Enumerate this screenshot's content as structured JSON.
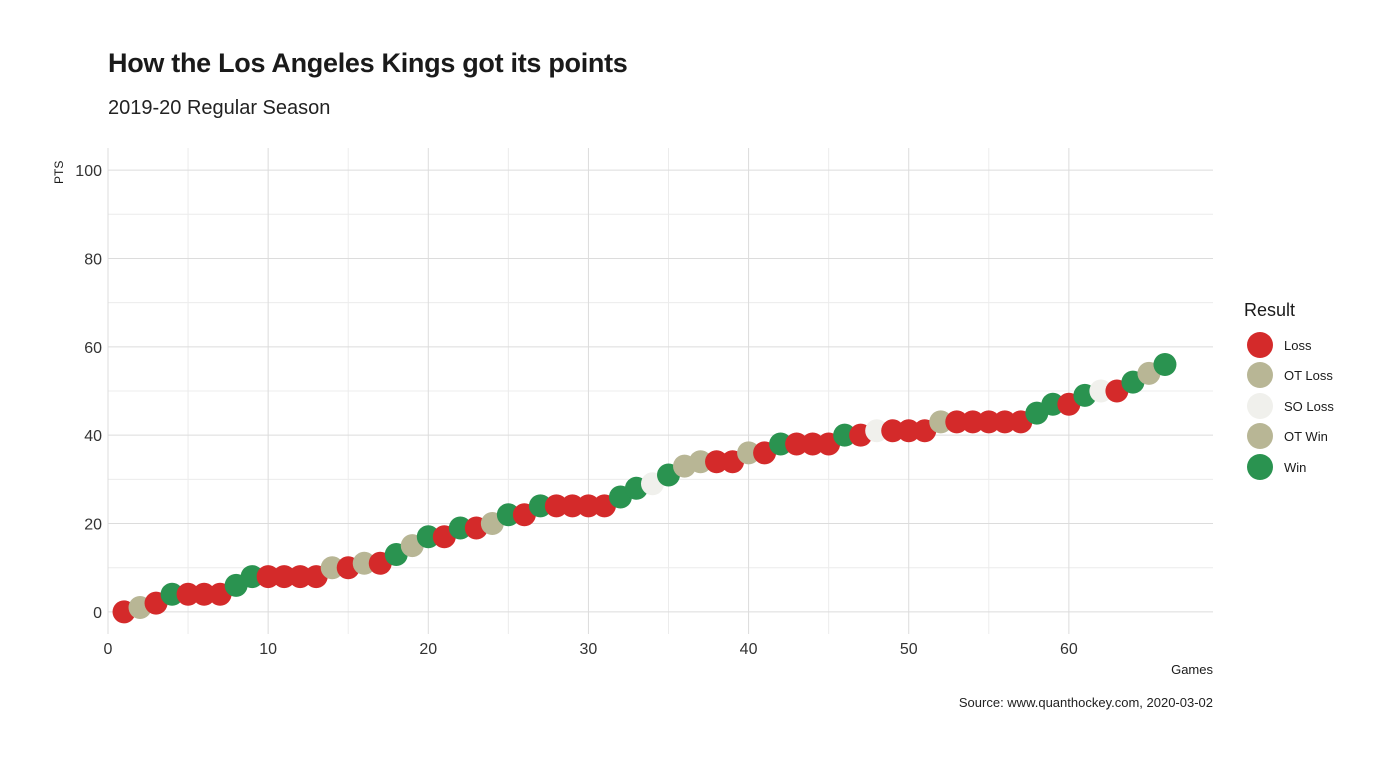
{
  "header": {
    "title": "How the Los Angeles Kings got its points",
    "subtitle": "2019-20 Regular Season"
  },
  "caption": "Source: www.quanthockey.com, 2020-03-02",
  "legend": {
    "title": "Result",
    "items": [
      {
        "label": "Loss",
        "color": "#d42a2a"
      },
      {
        "label": "OT Loss",
        "color": "#b8b695"
      },
      {
        "label": "SO Loss",
        "color": "#f0f0ec"
      },
      {
        "label": "OT Win",
        "color": "#b8b695"
      },
      {
        "label": "Win",
        "color": "#2a9350"
      }
    ]
  },
  "chart_data": {
    "type": "scatter",
    "title": "How the Los Angeles Kings got its points",
    "subtitle": "2019-20 Regular Season",
    "xlabel": "Games",
    "ylabel": "PTS",
    "xlim": [
      0,
      69
    ],
    "ylim": [
      -5,
      105
    ],
    "x_ticks": [
      0,
      10,
      20,
      30,
      40,
      50,
      60
    ],
    "y_ticks": [
      0,
      20,
      40,
      60,
      80,
      100
    ],
    "grid": true,
    "legend_position": "right",
    "line_color": "#c9c7a9",
    "series": [
      {
        "name": "Loss",
        "color": "#d42a2a",
        "points": [
          [
            1,
            0
          ],
          [
            3,
            2
          ],
          [
            5,
            4
          ],
          [
            6,
            4
          ],
          [
            7,
            4
          ],
          [
            10,
            8
          ],
          [
            11,
            8
          ],
          [
            12,
            8
          ],
          [
            13,
            8
          ],
          [
            15,
            10
          ],
          [
            17,
            11
          ],
          [
            21,
            17
          ],
          [
            23,
            19
          ],
          [
            26,
            22
          ],
          [
            28,
            24
          ],
          [
            29,
            24
          ],
          [
            30,
            24
          ],
          [
            31,
            24
          ],
          [
            38,
            34
          ],
          [
            39,
            34
          ],
          [
            41,
            36
          ],
          [
            43,
            38
          ],
          [
            44,
            38
          ],
          [
            45,
            38
          ],
          [
            47,
            40
          ],
          [
            49,
            41
          ],
          [
            50,
            41
          ],
          [
            51,
            41
          ],
          [
            53,
            43
          ],
          [
            54,
            43
          ],
          [
            55,
            43
          ],
          [
            56,
            43
          ],
          [
            57,
            43
          ],
          [
            60,
            47
          ],
          [
            63,
            50
          ]
        ]
      },
      {
        "name": "OT Loss",
        "color": "#b8b695",
        "points": [
          [
            2,
            1
          ],
          [
            16,
            11
          ],
          [
            19,
            15
          ],
          [
            36,
            33
          ],
          [
            37,
            34
          ],
          [
            40,
            36
          ],
          [
            52,
            43
          ]
        ]
      },
      {
        "name": "SO Loss",
        "color": "#f0f0ec",
        "points": [
          [
            34,
            29
          ],
          [
            48,
            41
          ],
          [
            62,
            50
          ]
        ]
      },
      {
        "name": "OT Win",
        "color": "#b8b695",
        "points": [
          [
            14,
            10
          ],
          [
            24,
            20
          ],
          [
            65,
            54
          ]
        ]
      },
      {
        "name": "Win",
        "color": "#2a9350",
        "points": [
          [
            4,
            4
          ],
          [
            8,
            6
          ],
          [
            9,
            8
          ],
          [
            18,
            13
          ],
          [
            20,
            17
          ],
          [
            22,
            19
          ],
          [
            25,
            22
          ],
          [
            27,
            24
          ],
          [
            32,
            26
          ],
          [
            33,
            28
          ],
          [
            35,
            31
          ],
          [
            42,
            38
          ],
          [
            46,
            40
          ],
          [
            58,
            45
          ],
          [
            59,
            47
          ],
          [
            61,
            49
          ],
          [
            64,
            52
          ],
          [
            66,
            56
          ]
        ]
      }
    ]
  }
}
